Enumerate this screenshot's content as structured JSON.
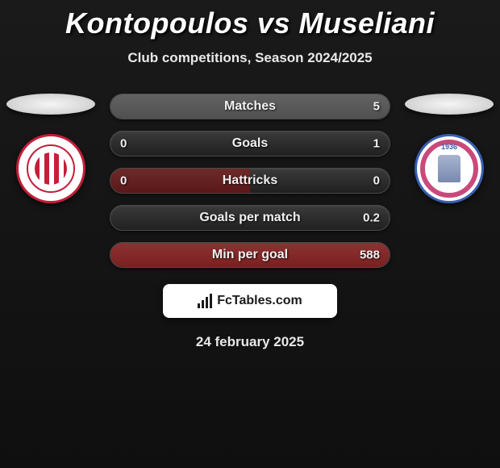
{
  "title": "Kontopoulos vs Museliani",
  "subtitle": "Club competitions, Season 2024/2025",
  "date": "24 february 2025",
  "brand": "FcTables.com",
  "colors": {
    "accent_left": "#c41e3a",
    "accent_right": "#3a5fb0",
    "pill_bg_dark": "#202020",
    "pill_fill_gray": "#505050",
    "pill_fill_darkred": "#5a1818",
    "pill_fill_red": "#7a2020",
    "text": "#f0f0f0"
  },
  "badge_right_year": "1936",
  "stats": [
    {
      "label": "Matches",
      "left_val": "",
      "right_val": "5",
      "fill_style": "full",
      "fill_color": "#505050"
    },
    {
      "label": "Goals",
      "left_val": "0",
      "right_val": "1",
      "fill_style": "none",
      "fill_color": ""
    },
    {
      "label": "Hattricks",
      "left_val": "0",
      "right_val": "0",
      "fill_style": "left",
      "fill_width_pct": 50,
      "fill_color": "#5a1818"
    },
    {
      "label": "Goals per match",
      "left_val": "",
      "right_val": "0.2",
      "fill_style": "none",
      "fill_color": ""
    },
    {
      "label": "Min per goal",
      "left_val": "",
      "right_val": "588",
      "fill_style": "full",
      "fill_color": "#7a2020"
    }
  ]
}
